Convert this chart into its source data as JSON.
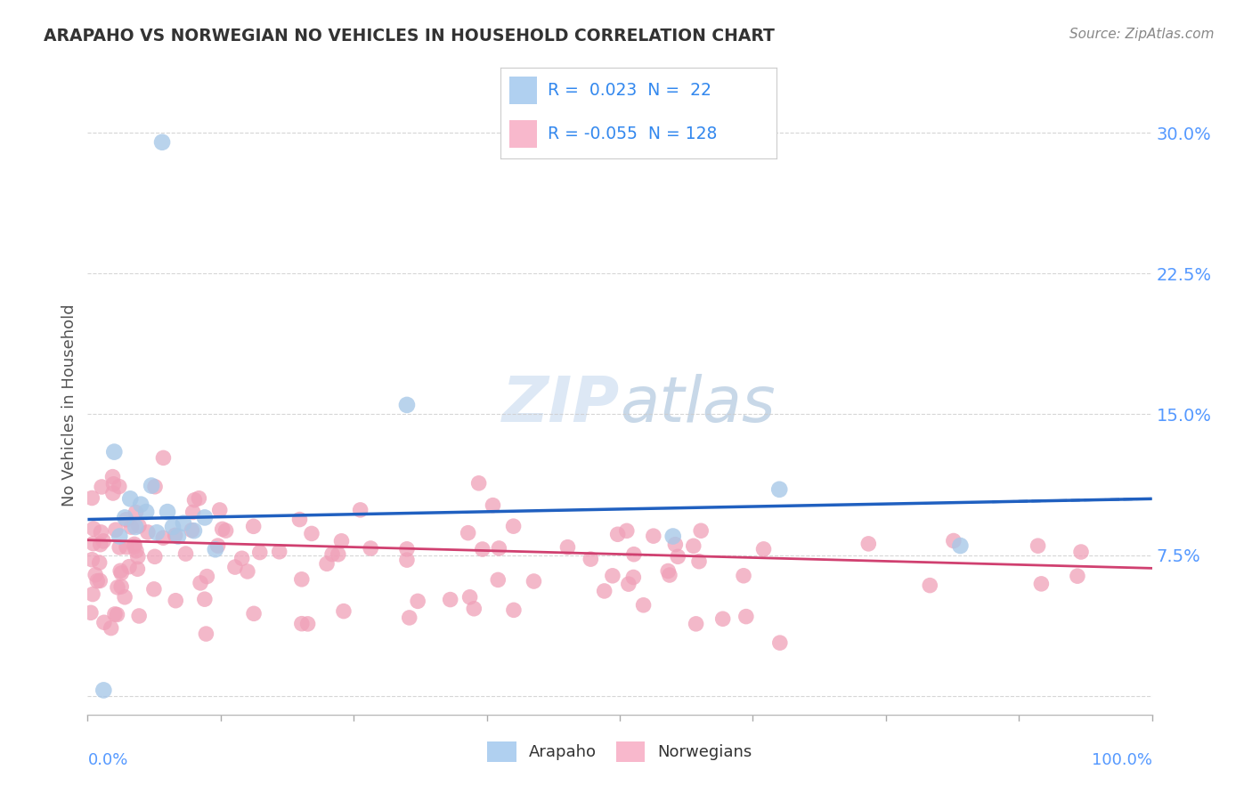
{
  "title": "ARAPAHO VS NORWEGIAN NO VEHICLES IN HOUSEHOLD CORRELATION CHART",
  "source": "Source: ZipAtlas.com",
  "ylabel": "No Vehicles in Household",
  "xlim": [
    0,
    100
  ],
  "ylim": [
    -1,
    32
  ],
  "yticks": [
    0,
    7.5,
    15.0,
    22.5,
    30.0
  ],
  "ytick_labels": [
    "",
    "7.5%",
    "15.0%",
    "22.5%",
    "30.0%"
  ],
  "legend_r_arapaho": " 0.023",
  "legend_n_arapaho": " 22",
  "legend_r_norwegian": "-0.055",
  "legend_n_norwegian": "128",
  "arapaho_color": "#a8c8e8",
  "norwegian_color": "#f0a0b8",
  "arapaho_line_color": "#2060c0",
  "norwegian_line_color": "#d04070",
  "arapaho_legend_color": "#b0d0f0",
  "norwegian_legend_color": "#f8b8cc",
  "watermark_color": "#dde8f5",
  "background_color": "#ffffff",
  "grid_color": "#cccccc",
  "title_color": "#333333",
  "source_color": "#888888",
  "tick_color": "#5599ff",
  "axis_label_color": "#555555",
  "arapaho_x": [
    5.5,
    2.5,
    7.0,
    3.5,
    4.0,
    6.0,
    7.5,
    8.0,
    9.0,
    10.0,
    3.0,
    4.5,
    5.0,
    6.5,
    8.5,
    11.0,
    12.0,
    30.0,
    55.0,
    65.0,
    82.0,
    1.5
  ],
  "arapaho_y": [
    9.8,
    13.0,
    29.5,
    9.5,
    10.5,
    11.2,
    9.8,
    9.0,
    9.2,
    8.8,
    8.5,
    9.0,
    10.2,
    8.7,
    8.5,
    9.5,
    7.8,
    15.5,
    8.5,
    11.0,
    8.0,
    0.3
  ],
  "arapaho_trend_x0": 0,
  "arapaho_trend_x1": 100,
  "arapaho_trend_y0": 9.4,
  "arapaho_trend_y1": 10.5,
  "norwegian_trend_x0": 0,
  "norwegian_trend_x1": 100,
  "norwegian_trend_y0": 8.3,
  "norwegian_trend_y1": 6.8
}
